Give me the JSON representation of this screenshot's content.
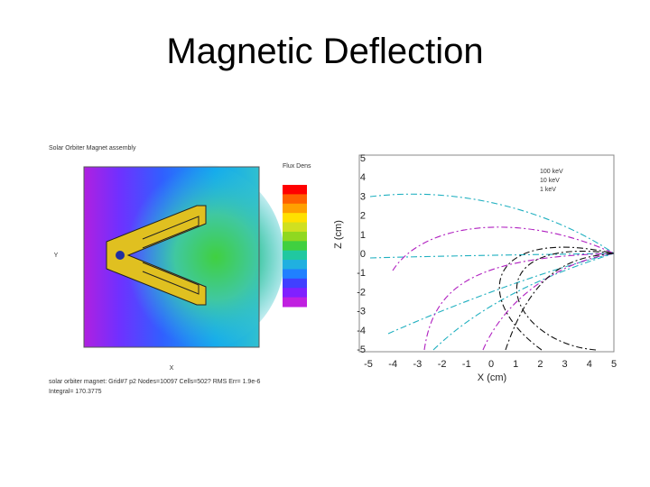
{
  "title": "Magnetic Deflection",
  "left_figure": {
    "title": "Solar Orbiter Magnet assembly",
    "colorbar_label": "Flux Dens",
    "x_label": "X",
    "y_label": "Y",
    "caption": [
      "solar orbiter magnet: Grid#7 p2 Nodes=10097 Cells=502? RMS Err= 1.9e-6",
      "Integral= 170.3775"
    ]
  },
  "right_figure": {
    "x_label": "X (cm)",
    "y_label": "Z (cm)",
    "xticks": [
      -5,
      -4,
      -3,
      -2,
      -1,
      0,
      1,
      2,
      3,
      4,
      5
    ],
    "yticks": [
      5,
      4,
      3,
      2,
      1,
      0,
      -1,
      -2,
      -3,
      -4,
      -5
    ],
    "legend": [
      "100 keV",
      "10 keV",
      "1 keV"
    ]
  }
}
